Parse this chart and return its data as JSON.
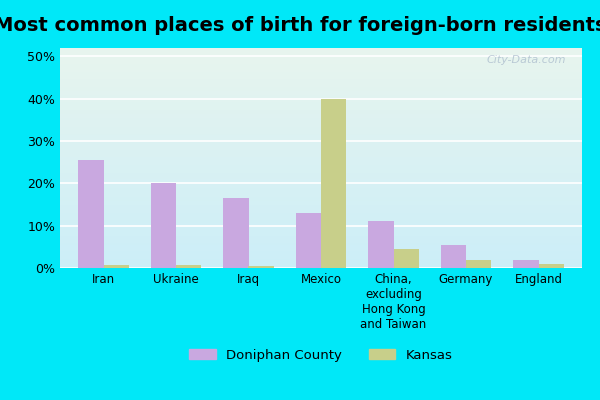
{
  "title": "Most common places of birth for foreign-born residents",
  "categories": [
    "Iran",
    "Ukraine",
    "Iraq",
    "Mexico",
    "China,\nexcluding\nHong Kong\nand Taiwan",
    "Germany",
    "England"
  ],
  "doniphan_values": [
    25.5,
    20.0,
    16.5,
    13.0,
    11.0,
    5.5,
    2.0
  ],
  "kansas_values": [
    0.8,
    0.6,
    0.5,
    40.0,
    4.5,
    2.0,
    1.0
  ],
  "doniphan_color": "#c9a8e0",
  "kansas_color": "#c8cf8a",
  "ylim": [
    0,
    52
  ],
  "yticks": [
    0,
    10,
    20,
    30,
    40,
    50
  ],
  "ytick_labels": [
    "0%",
    "10%",
    "20%",
    "30%",
    "40%",
    "50%"
  ],
  "legend_labels": [
    "Doniphan County",
    "Kansas"
  ],
  "bg_color_top": "#e8f5ee",
  "bg_color_bottom": "#cceef8",
  "fig_bg_color": "#00e8f8",
  "watermark": "City-Data.com",
  "bar_width": 0.35,
  "title_fontsize": 14
}
